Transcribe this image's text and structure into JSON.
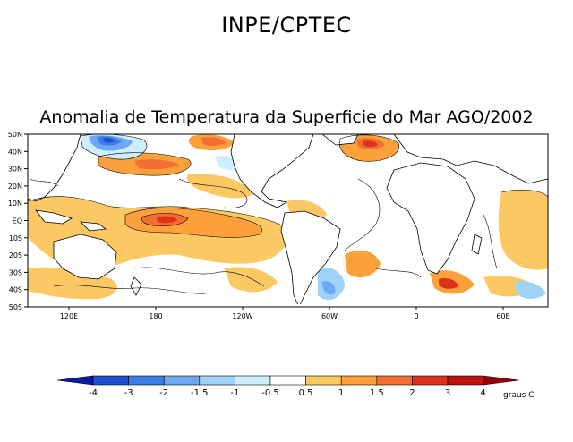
{
  "header": {
    "title": "INPE/CPTEC"
  },
  "map": {
    "title": "Anomalia de Temperatura da Superficie do Mar AGO/2002",
    "lat_labels": [
      "50N",
      "40N",
      "30N",
      "20N",
      "10N",
      "EQ",
      "10S",
      "20S",
      "30S",
      "40S",
      "50S"
    ],
    "lon_labels": [
      "120E",
      "180",
      "120W",
      "60W",
      "0",
      "60E"
    ]
  },
  "colorbar": {
    "levels": [
      "-4",
      "-3",
      "-2",
      "-1.5",
      "-1",
      "-0.5",
      "0.5",
      "1",
      "1.5",
      "2",
      "3",
      "4"
    ],
    "unit_label": "graus C",
    "colors": [
      "#0a1aa0",
      "#1e50d2",
      "#3c7ee6",
      "#6ea8f0",
      "#a0d2f8",
      "#cdeefc",
      "#ffffff",
      "#fcc864",
      "#fca03c",
      "#f46e32",
      "#dc3219",
      "#be140f",
      "#96000a"
    ]
  },
  "colors": {
    "land": "#ffffff",
    "positive": "#fca03c",
    "warm": "#f46e32",
    "hot": "#dc3219",
    "cool": "#a0d2f8",
    "cold": "#3c7ee6"
  }
}
